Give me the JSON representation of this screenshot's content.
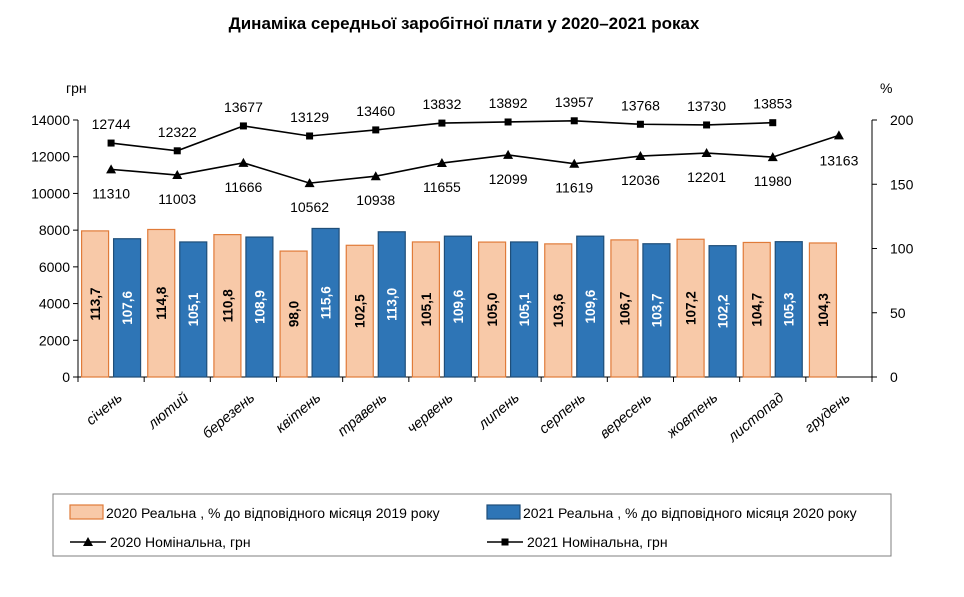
{
  "chart_data": {
    "type": "bar",
    "title": "Динаміка середньої заробітної плати у 2020–2021 роках",
    "categories": [
      "січень",
      "лютий",
      "березень",
      "квітень",
      "травень",
      "червень",
      "липень",
      "серпень",
      "вересень",
      "жовтень",
      "листопад",
      "грудень"
    ],
    "left_axis": {
      "unit_label": "грн",
      "ylim": [
        0,
        14000
      ],
      "ticks": [
        "0",
        "2000",
        "4000",
        "6000",
        "8000",
        "10000",
        "12000",
        "14000"
      ]
    },
    "right_axis": {
      "unit_label": "%",
      "ylim": [
        0,
        200
      ],
      "ticks": [
        "0",
        "50",
        "100",
        "150",
        "200"
      ]
    },
    "series": [
      {
        "name": "2020 Реальна , % до відповідного місяця 2019 року",
        "kind": "bar",
        "axis": "right",
        "color": "#f8c9a8",
        "edge": "#e07b39",
        "values": [
          113.7,
          114.8,
          110.8,
          98.0,
          102.5,
          105.1,
          105.0,
          103.6,
          106.7,
          107.2,
          104.7,
          104.3
        ],
        "labels": [
          "113,7",
          "114,8",
          "110,8",
          "98,0",
          "102,5",
          "105,1",
          "105,0",
          "103,6",
          "106,7",
          "107,2",
          "104,7",
          "104,3"
        ]
      },
      {
        "name": "2021 Реальна , % до відповідного місяця 2020 року",
        "kind": "bar",
        "axis": "right",
        "color": "#2e75b6",
        "edge": "#1f4e79",
        "values": [
          107.6,
          105.1,
          108.9,
          115.6,
          113.0,
          109.6,
          105.1,
          109.6,
          103.7,
          102.2,
          105.3,
          null
        ],
        "labels": [
          "107,6",
          "105,1",
          "108,9",
          "115,6",
          "113,0",
          "109,6",
          "105,1",
          "109,6",
          "103,7",
          "102,2",
          "105,3",
          ""
        ]
      },
      {
        "name": "2020 Номінальна, грн",
        "kind": "line",
        "marker": "triangle",
        "axis": "left",
        "color": "#000000",
        "values": [
          11310,
          11003,
          11666,
          10562,
          10938,
          11655,
          12099,
          11619,
          12036,
          12201,
          11980,
          13163
        ],
        "labels": [
          "11310",
          "11003",
          "11666",
          "10562",
          "10938",
          "11655",
          "12099",
          "11619",
          "12036",
          "12201",
          "11980",
          "13163"
        ]
      },
      {
        "name": "2021 Номінальна, грн",
        "kind": "line",
        "marker": "square",
        "axis": "left",
        "color": "#000000",
        "values": [
          12744,
          12322,
          13677,
          13129,
          13460,
          13832,
          13892,
          13957,
          13768,
          13730,
          13853,
          null
        ],
        "labels": [
          "12744",
          "12322",
          "13677",
          "13129",
          "13460",
          "13832",
          "13892",
          "13957",
          "13768",
          "13730",
          "13853",
          ""
        ]
      }
    ],
    "legend": {
      "items": [
        "2020 Реальна , % до відповідного місяця 2019 року",
        "2021 Реальна , % до відповідного місяця 2020 року",
        "2020 Номінальна, грн",
        "2021 Номінальна, грн"
      ],
      "placement": "bottom"
    }
  }
}
